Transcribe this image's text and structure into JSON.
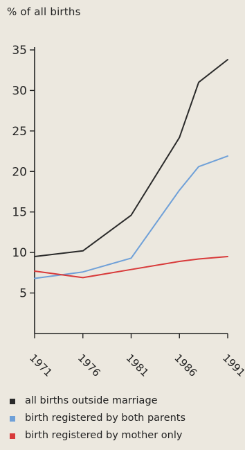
{
  "chart_data": {
    "type": "line",
    "ylabel": "% of all births",
    "ylim": [
      0,
      35
    ],
    "yticks": [
      5,
      10,
      15,
      20,
      25,
      30,
      35
    ],
    "x": [
      "1971",
      "1976",
      "1981",
      "1986",
      "1991"
    ],
    "series": [
      {
        "name": "all births outside marriage",
        "color": "#2a2a2a",
        "points": [
          [
            1971,
            9.5
          ],
          [
            1976,
            10.2
          ],
          [
            1981,
            14.6
          ],
          [
            1986,
            24.2
          ],
          [
            1988,
            31.0
          ],
          [
            1991,
            33.8
          ]
        ]
      },
      {
        "name": "birth registered by both parents",
        "color": "#6fa0d8",
        "points": [
          [
            1971,
            6.8
          ],
          [
            1976,
            7.6
          ],
          [
            1981,
            9.3
          ],
          [
            1986,
            17.7
          ],
          [
            1988,
            20.6
          ],
          [
            1991,
            21.9
          ]
        ]
      },
      {
        "name": "birth registered by mother only",
        "color": "#d83a3a",
        "points": [
          [
            1971,
            7.7
          ],
          [
            1976,
            6.9
          ],
          [
            1981,
            7.9
          ],
          [
            1986,
            8.9
          ],
          [
            1988,
            9.2
          ],
          [
            1991,
            9.5
          ]
        ]
      }
    ],
    "grid": false,
    "legend_position": "bottom"
  }
}
